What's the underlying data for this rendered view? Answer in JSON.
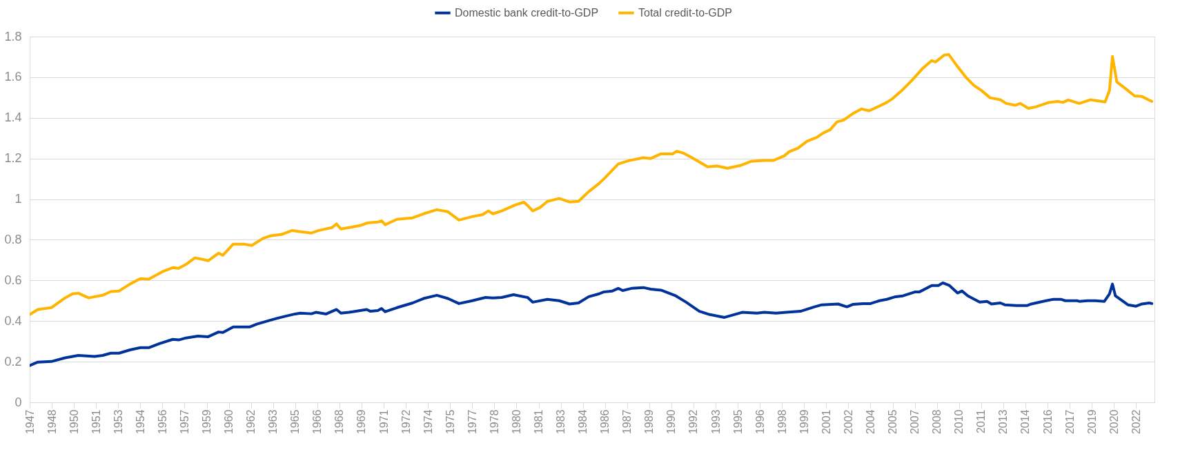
{
  "chart_data": {
    "type": "line",
    "legend": "top",
    "grid": "y",
    "line_style": "solid",
    "marker": "none",
    "xlim": [
      1947,
      2023.25
    ],
    "ylim": [
      0,
      1.8
    ],
    "yticks": [
      0,
      0.2,
      0.4,
      0.6,
      0.8,
      1,
      1.2,
      1.4,
      1.6,
      1.8
    ],
    "xticks": [
      1947,
      {
        "value": 1948.5,
        "label": "1948"
      },
      1950,
      {
        "value": 1951.5,
        "label": "1951"
      },
      1953,
      {
        "value": 1954.5,
        "label": "1954"
      },
      1956,
      {
        "value": 1957.5,
        "label": "1957"
      },
      1959,
      {
        "value": 1960.5,
        "label": "1960"
      },
      1962,
      {
        "value": 1963.5,
        "label": "1963"
      },
      1965,
      {
        "value": 1966.5,
        "label": "1966"
      },
      1968,
      {
        "value": 1969.5,
        "label": "1969"
      },
      1971,
      {
        "value": 1972.5,
        "label": "1972"
      },
      1974,
      {
        "value": 1975.5,
        "label": "1975"
      },
      1977,
      {
        "value": 1978.5,
        "label": "1978"
      },
      1980,
      {
        "value": 1981.5,
        "label": "1981"
      },
      1983,
      {
        "value": 1984.5,
        "label": "1984"
      },
      1986,
      {
        "value": 1987.5,
        "label": "1987"
      },
      1989,
      {
        "value": 1990.5,
        "label": "1990"
      },
      1992,
      {
        "value": 1993.5,
        "label": "1993"
      },
      1995,
      {
        "value": 1996.5,
        "label": "1996"
      },
      1998,
      {
        "value": 1999.5,
        "label": "1999"
      },
      2001,
      {
        "value": 2002.5,
        "label": "2002"
      },
      2004,
      {
        "value": 2005.5,
        "label": "2005"
      },
      2007,
      {
        "value": 2008.5,
        "label": "2008"
      },
      2010,
      {
        "value": 2011.5,
        "label": "2011"
      },
      2013,
      {
        "value": 2014.5,
        "label": "2014"
      },
      2016,
      {
        "value": 2017.5,
        "label": "2017"
      },
      2019,
      {
        "value": 2020.5,
        "label": "2020"
      },
      2022
    ],
    "series": [
      {
        "name": "Domestic bank credit-to-GDP",
        "color": "#003299",
        "x": [
          1947.0,
          1947.55,
          1948.47,
          1949.4,
          1950.3,
          1951.4,
          1951.95,
          1952.5,
          1953.06,
          1953.8,
          1954.5,
          1955.07,
          1955.8,
          1956.7,
          1957.1,
          1957.6,
          1958.4,
          1959.1,
          1959.8,
          1960.1,
          1960.8,
          1961.9,
          1962.4,
          1963.0,
          1963.7,
          1964.4,
          1965.0,
          1965.35,
          1966.1,
          1966.4,
          1967.1,
          1967.8,
          1968.1,
          1968.65,
          1969.4,
          1969.85,
          1970.1,
          1970.6,
          1970.85,
          1971.1,
          1971.9,
          1972.96,
          1973.7,
          1974.6,
          1975.35,
          1976.1,
          1977.0,
          1977.9,
          1978.4,
          1979.0,
          1979.8,
          1980.75,
          1981.1,
          1982.1,
          1982.9,
          1983.6,
          1984.2,
          1984.9,
          1985.6,
          1985.9,
          1986.5,
          1986.9,
          1987.2,
          1987.8,
          1988.6,
          1989.1,
          1989.8,
          1990.8,
          1991.5,
          1992.4,
          1993.1,
          1994.1,
          1995.3,
          1996.3,
          1996.8,
          1997.6,
          1998.3,
          1999.25,
          2000.2,
          2000.7,
          2001.8,
          2002.4,
          2002.8,
          2003.5,
          2004.0,
          2004.6,
          2005.1,
          2005.7,
          2006.2,
          2007.0,
          2007.3,
          2008.15,
          2008.6,
          2008.9,
          2009.35,
          2009.9,
          2010.2,
          2010.6,
          2011.4,
          2011.9,
          2012.2,
          2012.8,
          2013.1,
          2013.9,
          2014.6,
          2014.9,
          2015.9,
          2016.4,
          2016.9,
          2017.2,
          2018.0,
          2018.15,
          2018.7,
          2019.25,
          2019.85,
          2020.2,
          2020.4,
          2020.6,
          2021.45,
          2022.0,
          2022.4,
          2022.9,
          2023.07
        ],
        "values": [
          0.181,
          0.198,
          0.201,
          0.219,
          0.231,
          0.226,
          0.231,
          0.242,
          0.242,
          0.258,
          0.269,
          0.269,
          0.289,
          0.31,
          0.307,
          0.317,
          0.326,
          0.323,
          0.346,
          0.344,
          0.371,
          0.371,
          0.385,
          0.398,
          0.412,
          0.425,
          0.435,
          0.439,
          0.436,
          0.443,
          0.435,
          0.457,
          0.439,
          0.443,
          0.452,
          0.457,
          0.448,
          0.452,
          0.462,
          0.446,
          0.466,
          0.489,
          0.511,
          0.527,
          0.511,
          0.486,
          0.5,
          0.516,
          0.514,
          0.516,
          0.53,
          0.516,
          0.493,
          0.507,
          0.5,
          0.484,
          0.489,
          0.52,
          0.534,
          0.543,
          0.548,
          0.561,
          0.55,
          0.561,
          0.565,
          0.557,
          0.552,
          0.524,
          0.493,
          0.448,
          0.432,
          0.418,
          0.443,
          0.439,
          0.443,
          0.439,
          0.443,
          0.448,
          0.47,
          0.48,
          0.484,
          0.47,
          0.482,
          0.486,
          0.486,
          0.5,
          0.507,
          0.52,
          0.524,
          0.543,
          0.543,
          0.575,
          0.575,
          0.588,
          0.575,
          0.538,
          0.548,
          0.524,
          0.493,
          0.497,
          0.484,
          0.489,
          0.48,
          0.476,
          0.476,
          0.484,
          0.5,
          0.507,
          0.507,
          0.5,
          0.5,
          0.497,
          0.5,
          0.5,
          0.497,
          0.534,
          0.582,
          0.524,
          0.48,
          0.473,
          0.484,
          0.489,
          0.486
        ]
      },
      {
        "name": "Total credit-to-GDP",
        "color": "#ffb400",
        "x": [
          1947.0,
          1947.55,
          1948.47,
          1949.4,
          1949.9,
          1950.3,
          1951.0,
          1951.95,
          1952.5,
          1953.06,
          1953.8,
          1954.5,
          1955.07,
          1956.0,
          1956.7,
          1957.1,
          1957.6,
          1958.2,
          1958.7,
          1959.1,
          1959.8,
          1960.1,
          1960.8,
          1961.5,
          1962.05,
          1962.8,
          1963.3,
          1964.06,
          1964.8,
          1965.35,
          1966.1,
          1966.6,
          1967.5,
          1967.8,
          1968.1,
          1968.65,
          1969.4,
          1969.9,
          1970.6,
          1970.85,
          1971.1,
          1971.9,
          1972.96,
          1973.7,
          1974.6,
          1975.35,
          1976.1,
          1977.0,
          1977.7,
          1978.1,
          1978.4,
          1979.0,
          1979.9,
          1980.5,
          1980.75,
          1981.1,
          1981.6,
          1982.1,
          1982.9,
          1983.6,
          1984.2,
          1984.9,
          1985.6,
          1986.0,
          1986.9,
          1987.6,
          1988.6,
          1989.1,
          1989.8,
          1990.6,
          1990.85,
          1991.3,
          1991.9,
          1992.96,
          1993.6,
          1994.3,
          1995.2,
          1995.9,
          1996.8,
          1997.4,
          1998.15,
          1998.5,
          1999.07,
          1999.7,
          2000.35,
          2000.8,
          2001.27,
          2001.73,
          2002.2,
          2002.8,
          2003.4,
          2003.9,
          2004.6,
          2005.1,
          2005.5,
          2006.1,
          2006.8,
          2007.5,
          2008.15,
          2008.4,
          2009.0,
          2009.3,
          2009.9,
          2010.45,
          2011.0,
          2011.55,
          2012.1,
          2012.8,
          2013.2,
          2013.8,
          2014.15,
          2014.7,
          2015.2,
          2016.1,
          2016.7,
          2017.05,
          2017.4,
          2018.15,
          2018.9,
          2019.9,
          2020.2,
          2020.4,
          2020.7,
          2021.3,
          2021.9,
          2022.4,
          2023.07
        ],
        "values": [
          0.432,
          0.457,
          0.466,
          0.514,
          0.534,
          0.537,
          0.514,
          0.527,
          0.545,
          0.548,
          0.582,
          0.609,
          0.606,
          0.643,
          0.663,
          0.66,
          0.679,
          0.711,
          0.704,
          0.697,
          0.734,
          0.724,
          0.779,
          0.779,
          0.772,
          0.806,
          0.819,
          0.826,
          0.846,
          0.84,
          0.833,
          0.846,
          0.86,
          0.878,
          0.853,
          0.86,
          0.87,
          0.883,
          0.887,
          0.894,
          0.874,
          0.901,
          0.908,
          0.928,
          0.948,
          0.938,
          0.897,
          0.914,
          0.924,
          0.942,
          0.928,
          0.942,
          0.971,
          0.985,
          0.969,
          0.942,
          0.959,
          0.989,
          1.003,
          0.986,
          0.989,
          1.037,
          1.077,
          1.105,
          1.173,
          1.189,
          1.204,
          1.2,
          1.223,
          1.223,
          1.236,
          1.227,
          1.204,
          1.159,
          1.163,
          1.152,
          1.166,
          1.186,
          1.19,
          1.19,
          1.213,
          1.234,
          1.25,
          1.285,
          1.304,
          1.326,
          1.342,
          1.38,
          1.39,
          1.421,
          1.444,
          1.435,
          1.458,
          1.476,
          1.495,
          1.533,
          1.584,
          1.641,
          1.682,
          1.675,
          1.709,
          1.712,
          1.652,
          1.601,
          1.56,
          1.533,
          1.499,
          1.489,
          1.471,
          1.462,
          1.471,
          1.447,
          1.454,
          1.476,
          1.481,
          1.476,
          1.488,
          1.471,
          1.489,
          1.478,
          1.535,
          1.702,
          1.576,
          1.543,
          1.508,
          1.505,
          1.481
        ]
      }
    ]
  }
}
